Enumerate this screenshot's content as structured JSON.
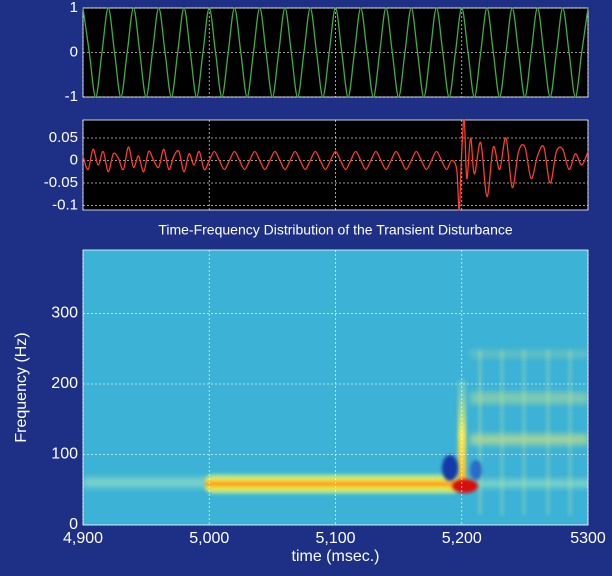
{
  "chart_data": [
    {
      "type": "line",
      "color": "#3fae3f",
      "x": [
        4900,
        4905,
        4910,
        4915,
        4920,
        4925,
        4930,
        4935,
        4940,
        4945,
        4950,
        4955,
        4960,
        4965,
        4970,
        4975,
        4980,
        4985,
        4990,
        4995,
        5000,
        5005,
        5010,
        5015,
        5020,
        5025,
        5030,
        5035,
        5040,
        5045,
        5050,
        5055,
        5060,
        5065,
        5070,
        5075,
        5080,
        5085,
        5090,
        5095,
        5100,
        5105,
        5110,
        5115,
        5120,
        5125,
        5130,
        5135,
        5140,
        5145,
        5150,
        5155,
        5160,
        5165,
        5170,
        5175,
        5180,
        5185,
        5190,
        5195,
        5200,
        5205,
        5210,
        5215,
        5220,
        5225,
        5230,
        5235,
        5240,
        5245,
        5250,
        5255,
        5260,
        5265,
        5270,
        5275,
        5280,
        5285,
        5290,
        5295,
        5300
      ],
      "values": [
        1,
        0,
        -1,
        0,
        1,
        0,
        -1,
        0,
        1,
        0,
        -1,
        0,
        1,
        0,
        -1,
        0,
        1,
        0,
        -1,
        0,
        1,
        0,
        -1,
        0,
        1,
        0,
        -1,
        0,
        1,
        0,
        -1,
        0,
        1,
        0,
        -1,
        0,
        1,
        0,
        -1,
        0,
        1,
        0,
        -1,
        0,
        1,
        0,
        -1,
        0,
        1,
        0,
        -1,
        0,
        1,
        0,
        -1,
        0,
        1,
        0,
        -1,
        0,
        1,
        0,
        -1,
        0,
        1,
        0,
        -1,
        0,
        1,
        0,
        -1,
        0,
        1,
        0,
        -1,
        0,
        1,
        0,
        -1,
        0,
        1
      ],
      "xlim": [
        4900,
        5300
      ],
      "xticks": [
        4900,
        5000,
        5100,
        5200,
        5300
      ],
      "ylim": [
        -1,
        1
      ],
      "yticks": [
        1,
        0,
        -1
      ],
      "grid": true
    },
    {
      "type": "line",
      "color": "#ff3b2a",
      "x": [
        4900,
        4904,
        4908,
        4912,
        4916,
        4920,
        4924,
        4928,
        4932,
        4936,
        4940,
        4944,
        4948,
        4952,
        4956,
        4960,
        4964,
        4968,
        4972,
        4976,
        4980,
        4984,
        4988,
        4992,
        4996,
        5000,
        5004,
        5008,
        5012,
        5016,
        5020,
        5024,
        5028,
        5032,
        5036,
        5040,
        5044,
        5048,
        5052,
        5056,
        5060,
        5064,
        5068,
        5072,
        5076,
        5080,
        5084,
        5088,
        5092,
        5096,
        5100,
        5104,
        5108,
        5112,
        5116,
        5120,
        5124,
        5128,
        5132,
        5136,
        5140,
        5144,
        5148,
        5152,
        5156,
        5160,
        5164,
        5168,
        5172,
        5176,
        5180,
        5184,
        5188,
        5192,
        5196,
        5198,
        5200,
        5202,
        5204,
        5207,
        5210,
        5215,
        5220,
        5225,
        5230,
        5235,
        5240,
        5245,
        5250,
        5255,
        5260,
        5265,
        5270,
        5275,
        5280,
        5285,
        5290,
        5295,
        5300
      ],
      "values": [
        0.01,
        -0.02,
        0.025,
        -0.01,
        0.02,
        -0.025,
        0.015,
        0.005,
        -0.02,
        0.03,
        -0.015,
        0.01,
        -0.025,
        0.02,
        0,
        -0.015,
        0.025,
        -0.02,
        0.01,
        0.02,
        -0.025,
        0.015,
        -0.01,
        0.02,
        -0.02,
        0,
        0.02,
        0,
        -0.02,
        0,
        0.02,
        0,
        -0.02,
        0,
        0.02,
        0,
        -0.02,
        0,
        0.02,
        0,
        -0.02,
        0,
        0.02,
        0,
        -0.02,
        0,
        0.02,
        0,
        -0.02,
        0,
        0.02,
        0,
        -0.02,
        0,
        0.02,
        0,
        -0.02,
        0,
        0.02,
        0,
        -0.02,
        0,
        0.02,
        0,
        -0.02,
        0,
        0.02,
        0,
        -0.02,
        0,
        0.02,
        0,
        -0.02,
        0,
        -0.02,
        -0.11,
        0.02,
        0.09,
        -0.04,
        0.05,
        -0.03,
        0.04,
        -0.08,
        0.03,
        -0.02,
        0.05,
        -0.06,
        0.02,
        0.03,
        -0.04,
        0.01,
        0.03,
        -0.05,
        0.02,
        0.025,
        -0.02,
        0.015,
        -0.01,
        0.02
      ],
      "xlim": [
        4900,
        5300
      ],
      "xticks": [
        4900,
        5000,
        5100,
        5200,
        5300
      ],
      "ylim": [
        -0.11,
        0.09
      ],
      "yticks": [
        0.05,
        0,
        -0.05,
        -0.1
      ],
      "grid": true
    },
    {
      "type": "heatmap",
      "title": "Time-Frequency Distribution of the Transient Disturbance",
      "xlabel": "time (msec.)",
      "ylabel": "Frequency (Hz)",
      "xlim": [
        4900,
        5300
      ],
      "xticks": [
        {
          "value": 4900,
          "label": "4,900"
        },
        {
          "value": 5000,
          "label": "5,000"
        },
        {
          "value": 5100,
          "label": "5,100"
        },
        {
          "value": 5200,
          "label": "5,200"
        },
        5300
      ],
      "ylim": [
        0,
        390
      ],
      "yticks": [
        0,
        100,
        200,
        300
      ],
      "grid": true
    }
  ]
}
